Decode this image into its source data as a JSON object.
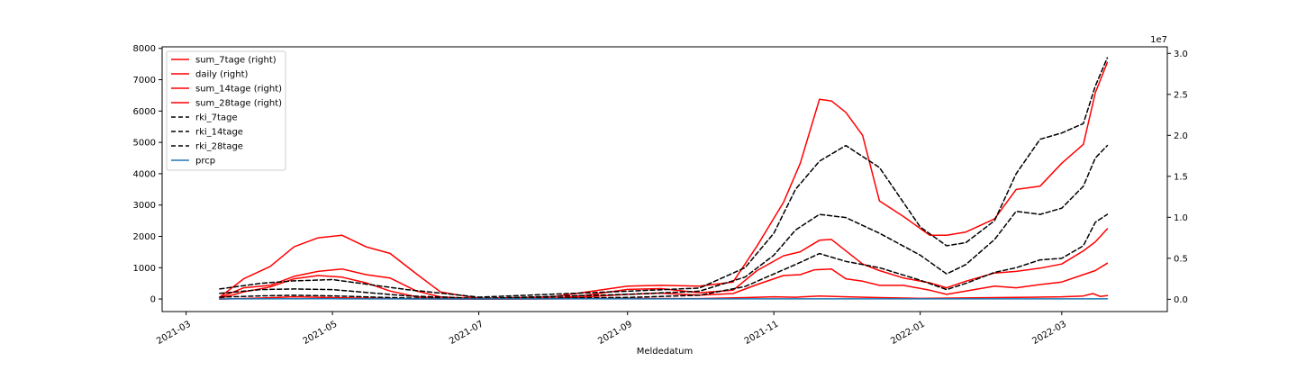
{
  "chart_data": {
    "type": "line",
    "xlabel": "Meldedatum",
    "x_start": "2021-03-15",
    "x_end": "2022-03-20",
    "xlim": [
      "2021-02-19",
      "2022-04-14"
    ],
    "x_ticks": [
      "2021-03",
      "2021-05",
      "2021-07",
      "2021-09",
      "2021-11",
      "2022-01",
      "2022-03"
    ],
    "left_axis": {
      "ylim": [
        -400,
        8050
      ],
      "ticks": [
        0,
        1000,
        2000,
        3000,
        4000,
        5000,
        6000,
        7000,
        8000
      ]
    },
    "right_axis": {
      "ylim": [
        -1500000,
        30800000
      ],
      "ticks": [
        0,
        5000000,
        10000000,
        15000000,
        20000000,
        25000000,
        30000000
      ],
      "tick_labels": [
        "0.0",
        "0.5",
        "1.0",
        "1.5",
        "2.0",
        "2.5",
        "3.0"
      ],
      "offset_label": "1e7"
    },
    "legend_position": "upper left",
    "series": [
      {
        "name": "sum_7tage (right)",
        "axis": "right",
        "color": "#ff0000",
        "style": "solid",
        "points": [
          [
            "2021-03-15",
            100000
          ],
          [
            "2021-03-25",
            900000
          ],
          [
            "2021-04-05",
            1500000
          ],
          [
            "2021-04-15",
            2500000
          ],
          [
            "2021-04-25",
            2900000
          ],
          [
            "2021-05-05",
            2700000
          ],
          [
            "2021-05-15",
            2000000
          ],
          [
            "2021-05-25",
            1000000
          ],
          [
            "2021-06-05",
            300000
          ],
          [
            "2021-06-15",
            100000
          ],
          [
            "2021-07-01",
            30000
          ],
          [
            "2021-08-01",
            60000
          ],
          [
            "2021-08-15",
            300000
          ],
          [
            "2021-09-01",
            600000
          ],
          [
            "2021-09-15",
            750000
          ],
          [
            "2021-10-01",
            500000
          ],
          [
            "2021-10-15",
            700000
          ],
          [
            "2021-10-25",
            1800000
          ],
          [
            "2021-11-05",
            2900000
          ],
          [
            "2021-11-12",
            3000000
          ],
          [
            "2021-11-18",
            3600000
          ],
          [
            "2021-11-25",
            3700000
          ],
          [
            "2021-12-01",
            2500000
          ],
          [
            "2021-12-08",
            2200000
          ],
          [
            "2021-12-15",
            1700000
          ],
          [
            "2021-12-25",
            1700000
          ],
          [
            "2022-01-05",
            1100000
          ],
          [
            "2022-01-12",
            600000
          ],
          [
            "2022-01-20",
            1000000
          ],
          [
            "2022-02-01",
            1600000
          ],
          [
            "2022-02-10",
            1400000
          ],
          [
            "2022-02-20",
            1800000
          ],
          [
            "2022-03-01",
            2100000
          ],
          [
            "2022-03-10",
            3000000
          ],
          [
            "2022-03-15",
            3500000
          ],
          [
            "2022-03-20",
            4400000
          ]
        ]
      },
      {
        "name": "daily (right)",
        "axis": "right",
        "color": "#ff0000",
        "style": "solid",
        "points": [
          [
            "2021-03-15",
            20000
          ],
          [
            "2021-04-01",
            150000
          ],
          [
            "2021-04-15",
            300000
          ],
          [
            "2021-05-01",
            200000
          ],
          [
            "2021-06-01",
            50000
          ],
          [
            "2021-07-01",
            10000
          ],
          [
            "2021-09-01",
            100000
          ],
          [
            "2021-10-01",
            80000
          ],
          [
            "2021-10-20",
            200000
          ],
          [
            "2021-11-01",
            300000
          ],
          [
            "2021-11-10",
            250000
          ],
          [
            "2021-11-20",
            400000
          ],
          [
            "2021-12-01",
            300000
          ],
          [
            "2021-12-15",
            200000
          ],
          [
            "2022-01-01",
            100000
          ],
          [
            "2022-01-15",
            150000
          ],
          [
            "2022-02-01",
            200000
          ],
          [
            "2022-02-15",
            250000
          ],
          [
            "2022-03-01",
            300000
          ],
          [
            "2022-03-10",
            400000
          ],
          [
            "2022-03-14",
            700000
          ],
          [
            "2022-03-17",
            350000
          ],
          [
            "2022-03-20",
            450000
          ]
        ]
      },
      {
        "name": "sum_14tage (right)",
        "axis": "right",
        "color": "#ff0000",
        "style": "solid",
        "points": [
          [
            "2021-03-15",
            200000
          ],
          [
            "2021-03-25",
            1400000
          ],
          [
            "2021-04-05",
            1700000
          ],
          [
            "2021-04-15",
            2800000
          ],
          [
            "2021-04-25",
            3400000
          ],
          [
            "2021-05-05",
            3700000
          ],
          [
            "2021-05-15",
            3000000
          ],
          [
            "2021-05-25",
            2600000
          ],
          [
            "2021-06-05",
            1000000
          ],
          [
            "2021-06-15",
            300000
          ],
          [
            "2021-07-01",
            50000
          ],
          [
            "2021-08-01",
            100000
          ],
          [
            "2021-08-15",
            500000
          ],
          [
            "2021-09-01",
            1200000
          ],
          [
            "2021-09-15",
            1300000
          ],
          [
            "2021-10-01",
            800000
          ],
          [
            "2021-10-15",
            1100000
          ],
          [
            "2021-10-25",
            3500000
          ],
          [
            "2021-11-05",
            5300000
          ],
          [
            "2021-11-12",
            5800000
          ],
          [
            "2021-11-20",
            7200000
          ],
          [
            "2021-11-25",
            7300000
          ],
          [
            "2021-12-01",
            5900000
          ],
          [
            "2021-12-08",
            4300000
          ],
          [
            "2021-12-15",
            3500000
          ],
          [
            "2021-12-25",
            2600000
          ],
          [
            "2022-01-05",
            2000000
          ],
          [
            "2022-01-12",
            1400000
          ],
          [
            "2022-01-20",
            2200000
          ],
          [
            "2022-02-01",
            3200000
          ],
          [
            "2022-02-10",
            3400000
          ],
          [
            "2022-02-20",
            3800000
          ],
          [
            "2022-03-01",
            4300000
          ],
          [
            "2022-03-10",
            5900000
          ],
          [
            "2022-03-15",
            7000000
          ],
          [
            "2022-03-20",
            8600000
          ]
        ]
      },
      {
        "name": "sum_28tage (right)",
        "axis": "right",
        "color": "#ff0000",
        "style": "solid",
        "points": [
          [
            "2021-03-15",
            250000
          ],
          [
            "2021-03-25",
            2500000
          ],
          [
            "2021-04-05",
            4000000
          ],
          [
            "2021-04-15",
            6400000
          ],
          [
            "2021-04-25",
            7500000
          ],
          [
            "2021-05-05",
            7800000
          ],
          [
            "2021-05-15",
            6400000
          ],
          [
            "2021-05-25",
            5600000
          ],
          [
            "2021-06-05",
            3100000
          ],
          [
            "2021-06-15",
            900000
          ],
          [
            "2021-07-01",
            100000
          ],
          [
            "2021-08-01",
            300000
          ],
          [
            "2021-08-15",
            900000
          ],
          [
            "2021-09-01",
            1600000
          ],
          [
            "2021-09-15",
            1700000
          ],
          [
            "2021-10-01",
            1600000
          ],
          [
            "2021-10-15",
            2100000
          ],
          [
            "2021-10-25",
            6500000
          ],
          [
            "2021-11-05",
            11800000
          ],
          [
            "2021-11-12",
            16600000
          ],
          [
            "2021-11-20",
            24400000
          ],
          [
            "2021-11-25",
            24200000
          ],
          [
            "2021-12-01",
            22800000
          ],
          [
            "2021-12-08",
            20000000
          ],
          [
            "2021-12-15",
            12000000
          ],
          [
            "2021-12-25",
            10100000
          ],
          [
            "2022-01-05",
            7800000
          ],
          [
            "2022-01-12",
            7800000
          ],
          [
            "2022-01-20",
            8200000
          ],
          [
            "2022-02-01",
            9800000
          ],
          [
            "2022-02-10",
            13400000
          ],
          [
            "2022-02-20",
            13800000
          ],
          [
            "2022-03-01",
            16600000
          ],
          [
            "2022-03-10",
            18900000
          ],
          [
            "2022-03-15",
            25200000
          ],
          [
            "2022-03-20",
            28900000
          ]
        ]
      },
      {
        "name": "rki_7tage",
        "axis": "left",
        "color": "#000000",
        "style": "dashed",
        "points": [
          [
            "2021-03-15",
            60
          ],
          [
            "2021-04-01",
            100
          ],
          [
            "2021-04-15",
            120
          ],
          [
            "2021-05-01",
            100
          ],
          [
            "2021-06-01",
            30
          ],
          [
            "2021-07-01",
            5
          ],
          [
            "2021-09-01",
            50
          ],
          [
            "2021-10-01",
            120
          ],
          [
            "2021-10-20",
            400
          ],
          [
            "2021-11-01",
            800
          ],
          [
            "2021-11-10",
            1100
          ],
          [
            "2021-11-20",
            1450
          ],
          [
            "2021-12-01",
            1200
          ],
          [
            "2021-12-15",
            1000
          ],
          [
            "2022-01-01",
            600
          ],
          [
            "2022-01-12",
            300
          ],
          [
            "2022-01-20",
            500
          ],
          [
            "2022-02-01",
            850
          ],
          [
            "2022-02-10",
            1000
          ],
          [
            "2022-02-20",
            1250
          ],
          [
            "2022-03-01",
            1300
          ],
          [
            "2022-03-10",
            1700
          ],
          [
            "2022-03-15",
            2450
          ],
          [
            "2022-03-20",
            2700
          ]
        ]
      },
      {
        "name": "rki_14tage",
        "axis": "left",
        "color": "#000000",
        "style": "dashed",
        "points": [
          [
            "2021-03-15",
            180
          ],
          [
            "2021-04-01",
            300
          ],
          [
            "2021-04-15",
            320
          ],
          [
            "2021-05-01",
            300
          ],
          [
            "2021-06-01",
            100
          ],
          [
            "2021-07-01",
            20
          ],
          [
            "2021-09-01",
            150
          ],
          [
            "2021-10-01",
            250
          ],
          [
            "2021-10-20",
            700
          ],
          [
            "2021-11-01",
            1400
          ],
          [
            "2021-11-10",
            2200
          ],
          [
            "2021-11-20",
            2700
          ],
          [
            "2021-12-01",
            2600
          ],
          [
            "2021-12-15",
            2100
          ],
          [
            "2022-01-01",
            1400
          ],
          [
            "2022-01-12",
            800
          ],
          [
            "2022-01-20",
            1100
          ],
          [
            "2022-02-01",
            1900
          ],
          [
            "2022-02-10",
            2800
          ],
          [
            "2022-02-20",
            2700
          ],
          [
            "2022-03-01",
            2900
          ],
          [
            "2022-03-10",
            3600
          ],
          [
            "2022-03-15",
            4500
          ],
          [
            "2022-03-20",
            4900
          ]
        ]
      },
      {
        "name": "rki_28tage",
        "axis": "left",
        "color": "#000000",
        "style": "dashed",
        "points": [
          [
            "2021-03-15",
            320
          ],
          [
            "2021-04-01",
            500
          ],
          [
            "2021-04-15",
            580
          ],
          [
            "2021-05-01",
            620
          ],
          [
            "2021-06-01",
            300
          ],
          [
            "2021-07-01",
            60
          ],
          [
            "2021-09-01",
            250
          ],
          [
            "2021-10-01",
            350
          ],
          [
            "2021-10-20",
            1000
          ],
          [
            "2021-11-01",
            2100
          ],
          [
            "2021-11-10",
            3500
          ],
          [
            "2021-11-20",
            4400
          ],
          [
            "2021-12-01",
            4900
          ],
          [
            "2021-12-15",
            4200
          ],
          [
            "2022-01-01",
            2300
          ],
          [
            "2022-01-12",
            1700
          ],
          [
            "2022-01-20",
            1800
          ],
          [
            "2022-02-01",
            2500
          ],
          [
            "2022-02-10",
            4000
          ],
          [
            "2022-02-20",
            5100
          ],
          [
            "2022-03-01",
            5300
          ],
          [
            "2022-03-10",
            5600
          ],
          [
            "2022-03-15",
            6800
          ],
          [
            "2022-03-20",
            7700
          ]
        ]
      },
      {
        "name": "prcp",
        "axis": "left",
        "color": "#1f77b4",
        "style": "solid",
        "points": [
          [
            "2021-03-15",
            5
          ],
          [
            "2021-05-01",
            8
          ],
          [
            "2021-07-01",
            3
          ],
          [
            "2021-09-01",
            6
          ],
          [
            "2021-11-01",
            4
          ],
          [
            "2022-01-01",
            5
          ],
          [
            "2022-03-20",
            4
          ]
        ]
      }
    ]
  }
}
